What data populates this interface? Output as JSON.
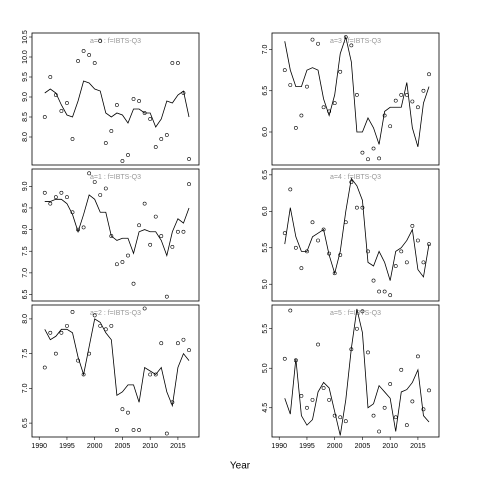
{
  "x_label": "Year",
  "chart_data": [
    {
      "type": "scatter",
      "title": "a=0 : f=IBTS-Q3",
      "title_color": "#999999",
      "x": [
        1991,
        1992,
        1993,
        1994,
        1995,
        1996,
        1997,
        1998,
        1999,
        2000,
        2001,
        2002,
        2003,
        2004,
        2005,
        2006,
        2007,
        2008,
        2009,
        2010,
        2011,
        2012,
        2013,
        2014,
        2015,
        2016,
        2017
      ],
      "xlim": [
        1988.7,
        2018.8
      ],
      "ylim": [
        7.3,
        10.6
      ],
      "yticks": [
        8.0,
        8.5,
        9.0,
        9.5,
        10.0,
        10.5
      ],
      "series": [
        {
          "style": "points",
          "color": "#000000",
          "values": [
            8.5,
            9.5,
            9.05,
            8.65,
            8.85,
            7.95,
            9.9,
            10.15,
            10.05,
            9.85,
            10.4,
            7.85,
            8.15,
            8.8,
            7.4,
            7.55,
            8.95,
            8.9,
            8.6,
            8.45,
            7.75,
            7.95,
            8.05,
            9.85,
            9.85,
            9.1,
            7.45
          ]
        },
        {
          "style": "line",
          "color": "#000000",
          "values": [
            9.1,
            9.2,
            9.1,
            8.8,
            8.55,
            8.5,
            8.9,
            9.4,
            9.35,
            9.2,
            9.15,
            8.6,
            8.5,
            8.6,
            8.55,
            8.35,
            8.7,
            8.7,
            8.6,
            8.6,
            8.25,
            8.45,
            8.9,
            8.85,
            9.05,
            9.15,
            8.5
          ]
        }
      ]
    },
    {
      "type": "scatter",
      "title": "a=3 : f=IBTS-Q3",
      "title_color": "#999999",
      "x": [
        1991,
        1992,
        1993,
        1994,
        1995,
        1996,
        1997,
        1998,
        1999,
        2000,
        2001,
        2002,
        2003,
        2004,
        2005,
        2006,
        2007,
        2008,
        2009,
        2010,
        2011,
        2012,
        2013,
        2014,
        2015,
        2016,
        2017
      ],
      "xlim": [
        1988.7,
        2018.8
      ],
      "ylim": [
        5.6,
        7.2
      ],
      "yticks": [
        6.0,
        6.5,
        7.0
      ],
      "series": [
        {
          "style": "points",
          "color": "#000000",
          "values": [
            6.75,
            6.57,
            6.05,
            6.2,
            6.55,
            7.12,
            7.07,
            6.3,
            6.25,
            6.35,
            6.73,
            7.15,
            7.05,
            6.45,
            5.75,
            5.67,
            5.8,
            5.68,
            6.2,
            6.07,
            6.38,
            6.45,
            6.45,
            6.37,
            6.3,
            6.5,
            6.7
          ]
        },
        {
          "style": "line",
          "color": "#000000",
          "values": [
            7.1,
            6.75,
            6.55,
            6.55,
            6.75,
            6.78,
            6.75,
            6.4,
            6.2,
            6.45,
            6.95,
            7.15,
            6.85,
            6.0,
            6.0,
            6.17,
            6.05,
            5.85,
            6.25,
            6.3,
            6.3,
            6.3,
            6.6,
            6.05,
            5.82,
            6.35,
            6.55
          ]
        }
      ]
    },
    {
      "type": "scatter",
      "title": "a=1 : f=IBTS-Q3",
      "title_color": "#999999",
      "x": [
        1991,
        1992,
        1993,
        1994,
        1995,
        1996,
        1997,
        1998,
        1999,
        2000,
        2001,
        2002,
        2003,
        2004,
        2005,
        2006,
        2007,
        2008,
        2009,
        2010,
        2011,
        2012,
        2013,
        2014,
        2015,
        2016,
        2017
      ],
      "xlim": [
        1988.7,
        2018.8
      ],
      "ylim": [
        6.35,
        9.4
      ],
      "yticks": [
        6.5,
        7.0,
        7.5,
        8.0,
        8.5,
        9.0
      ],
      "series": [
        {
          "style": "points",
          "color": "#000000",
          "values": [
            8.85,
            8.6,
            8.75,
            8.85,
            8.75,
            8.4,
            8.0,
            8.05,
            9.3,
            9.1,
            8.8,
            8.95,
            7.85,
            7.2,
            7.25,
            7.4,
            6.75,
            8.1,
            8.6,
            7.65,
            8.3,
            7.85,
            6.45,
            7.6,
            7.95,
            7.95,
            9.05
          ]
        },
        {
          "style": "line",
          "color": "#000000",
          "values": [
            8.65,
            8.65,
            8.7,
            8.7,
            8.6,
            8.35,
            7.95,
            8.35,
            8.8,
            8.7,
            8.4,
            8.4,
            7.85,
            7.75,
            7.8,
            7.8,
            7.45,
            7.95,
            8.0,
            7.95,
            7.95,
            7.75,
            7.4,
            7.95,
            8.25,
            8.15,
            8.5
          ]
        }
      ]
    },
    {
      "type": "scatter",
      "title": "a=4 : f=IBTS-Q3",
      "title_color": "#999999",
      "x": [
        1991,
        1992,
        1993,
        1994,
        1995,
        1996,
        1997,
        1998,
        1999,
        2000,
        2001,
        2002,
        2003,
        2004,
        2005,
        2006,
        2007,
        2008,
        2009,
        2010,
        2011,
        2012,
        2013,
        2014,
        2015,
        2016,
        2017
      ],
      "xlim": [
        1988.7,
        2018.8
      ],
      "ylim": [
        4.77,
        6.58
      ],
      "yticks": [
        5.0,
        5.5,
        6.0,
        6.5
      ],
      "series": [
        {
          "style": "points",
          "color": "#000000",
          "values": [
            5.7,
            6.3,
            5.5,
            5.22,
            5.45,
            5.85,
            5.6,
            5.75,
            5.42,
            5.15,
            5.4,
            5.85,
            6.4,
            6.05,
            6.05,
            5.45,
            5.05,
            4.9,
            4.9,
            4.85,
            5.25,
            5.45,
            5.3,
            5.8,
            5.6,
            5.3,
            5.55
          ]
        },
        {
          "style": "line",
          "color": "#000000",
          "values": [
            5.55,
            6.05,
            5.65,
            5.45,
            5.45,
            5.65,
            5.7,
            5.75,
            5.4,
            5.15,
            5.45,
            6.0,
            6.45,
            6.35,
            6.15,
            5.3,
            5.25,
            5.45,
            5.3,
            5.05,
            5.45,
            5.5,
            5.6,
            5.75,
            5.2,
            5.1,
            5.55
          ]
        }
      ]
    },
    {
      "type": "scatter",
      "title": "a=2 : f=IBTS-Q3",
      "title_color": "#999999",
      "x": [
        1991,
        1992,
        1993,
        1994,
        1995,
        1996,
        1997,
        1998,
        1999,
        2000,
        2001,
        2002,
        2003,
        2004,
        2005,
        2006,
        2007,
        2008,
        2009,
        2010,
        2011,
        2012,
        2013,
        2014,
        2015,
        2016,
        2017
      ],
      "xlim": [
        1988.7,
        2018.8
      ],
      "xticks": [
        1990,
        1995,
        2000,
        2005,
        2010,
        2015
      ],
      "ylim": [
        6.3,
        8.2
      ],
      "yticks": [
        6.5,
        7.0,
        7.5,
        8.0
      ],
      "series": [
        {
          "style": "points",
          "color": "#000000",
          "values": [
            7.3,
            7.8,
            7.5,
            7.8,
            7.9,
            8.1,
            7.4,
            7.2,
            7.5,
            8.05,
            7.9,
            7.85,
            7.9,
            6.4,
            6.7,
            6.65,
            6.4,
            6.4,
            8.15,
            7.2,
            7.2,
            7.65,
            6.35,
            6.8,
            7.65,
            7.7,
            7.55
          ]
        },
        {
          "style": "line",
          "color": "#000000",
          "values": [
            7.85,
            7.7,
            7.75,
            7.85,
            7.85,
            7.8,
            7.45,
            7.2,
            7.6,
            8.0,
            7.95,
            7.8,
            7.7,
            6.9,
            6.95,
            7.05,
            7.05,
            6.8,
            7.3,
            7.25,
            7.2,
            7.3,
            6.95,
            6.75,
            7.3,
            7.5,
            7.4
          ]
        }
      ]
    },
    {
      "type": "scatter",
      "title": "a=5 : f=IBTS-Q3",
      "title_color": "#999999",
      "x": [
        1991,
        1992,
        1993,
        1994,
        1995,
        1996,
        1997,
        1998,
        1999,
        2000,
        2001,
        2002,
        2003,
        2004,
        2005,
        2006,
        2007,
        2008,
        2009,
        2010,
        2011,
        2012,
        2013,
        2014,
        2015,
        2016,
        2017
      ],
      "xlim": [
        1988.7,
        2018.8
      ],
      "xticks": [
        1990,
        1995,
        2000,
        2005,
        2010,
        2015
      ],
      "ylim": [
        4.13,
        5.8
      ],
      "yticks": [
        4.5,
        5.0,
        5.5
      ],
      "series": [
        {
          "style": "points",
          "color": "#000000",
          "values": [
            5.12,
            5.73,
            5.1,
            4.65,
            4.5,
            4.6,
            5.3,
            4.75,
            4.6,
            4.4,
            4.38,
            4.33,
            5.24,
            5.5,
            5.72,
            5.2,
            4.4,
            4.2,
            4.5,
            4.8,
            4.38,
            4.98,
            4.28,
            4.58,
            5.15,
            4.48,
            4.72
          ]
        },
        {
          "style": "line",
          "color": "#000000",
          "values": [
            4.62,
            4.42,
            5.12,
            4.4,
            4.28,
            4.35,
            4.7,
            4.82,
            4.75,
            4.45,
            4.15,
            4.6,
            5.25,
            5.75,
            5.45,
            4.5,
            4.55,
            4.78,
            4.7,
            4.62,
            4.2,
            4.7,
            4.73,
            4.82,
            4.98,
            4.4,
            4.32
          ]
        }
      ]
    }
  ]
}
